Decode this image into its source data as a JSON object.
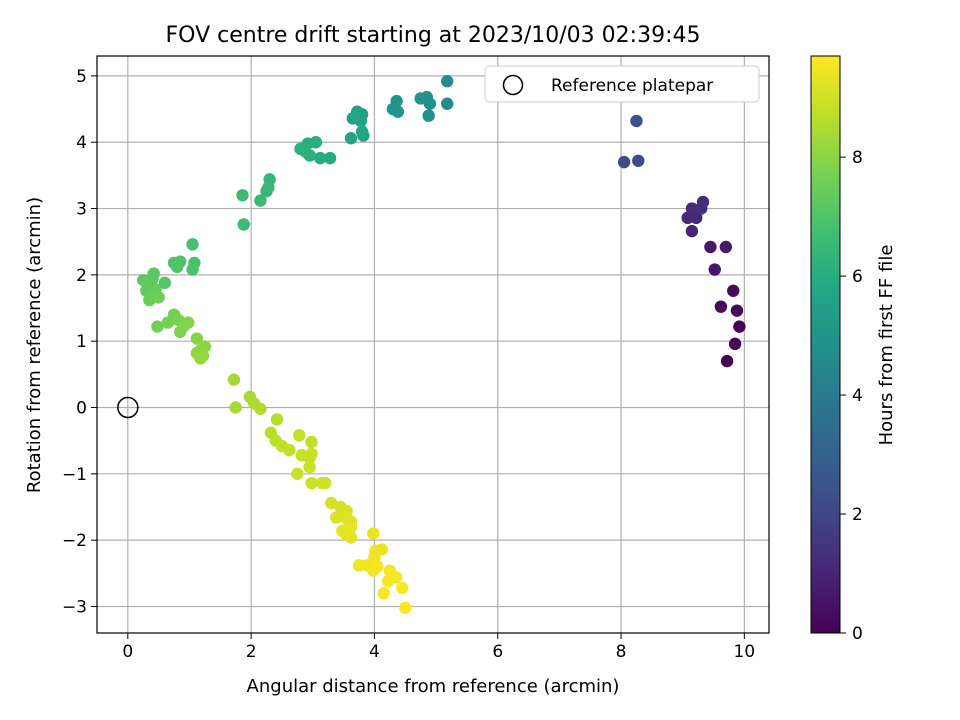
{
  "chart_data": {
    "type": "scatter",
    "title": "FOV centre drift starting at 2023/10/03 02:39:45",
    "xlabel": "Angular distance from reference (arcmin)",
    "ylabel": "Rotation from reference (arcmin)",
    "xlim": [
      -0.5,
      10.4
    ],
    "ylim": [
      -3.4,
      5.3
    ],
    "xticks": [
      0,
      2,
      4,
      6,
      8,
      10
    ],
    "yticks": [
      -3,
      -2,
      -1,
      0,
      1,
      2,
      3,
      4,
      5
    ],
    "grid": true,
    "legend": {
      "position": "upper-right",
      "entries": [
        "Reference platepar"
      ]
    },
    "reference_point": {
      "x": 0,
      "y": 0,
      "label": "Reference platepar"
    },
    "colorbar": {
      "label": "Hours from first FF file",
      "range": [
        0,
        9.7
      ],
      "ticks": [
        0,
        2,
        4,
        6,
        8
      ],
      "colormap": "viridis"
    },
    "points": [
      {
        "x": 9.72,
        "y": 0.7,
        "c": 0.05
      },
      {
        "x": 9.85,
        "y": 0.96,
        "c": 0.1
      },
      {
        "x": 9.92,
        "y": 1.22,
        "c": 0.15
      },
      {
        "x": 9.88,
        "y": 1.46,
        "c": 0.2
      },
      {
        "x": 9.62,
        "y": 1.52,
        "c": 0.25
      },
      {
        "x": 9.82,
        "y": 1.76,
        "c": 0.3
      },
      {
        "x": 9.52,
        "y": 2.08,
        "c": 0.55
      },
      {
        "x": 9.45,
        "y": 2.42,
        "c": 0.65
      },
      {
        "x": 9.7,
        "y": 2.42,
        "c": 0.7
      },
      {
        "x": 9.15,
        "y": 2.66,
        "c": 1.0
      },
      {
        "x": 9.08,
        "y": 2.86,
        "c": 1.05
      },
      {
        "x": 9.22,
        "y": 2.86,
        "c": 1.1
      },
      {
        "x": 9.15,
        "y": 3.0,
        "c": 1.15
      },
      {
        "x": 9.3,
        "y": 3.0,
        "c": 1.2
      },
      {
        "x": 9.33,
        "y": 3.1,
        "c": 1.25
      },
      {
        "x": 8.05,
        "y": 3.7,
        "c": 2.2
      },
      {
        "x": 8.28,
        "y": 3.72,
        "c": 2.25
      },
      {
        "x": 8.25,
        "y": 4.32,
        "c": 2.4
      },
      {
        "x": 5.18,
        "y": 4.92,
        "c": 4.7
      },
      {
        "x": 5.18,
        "y": 4.58,
        "c": 4.75
      },
      {
        "x": 4.88,
        "y": 4.4,
        "c": 4.8
      },
      {
        "x": 4.9,
        "y": 4.58,
        "c": 4.85
      },
      {
        "x": 4.85,
        "y": 4.68,
        "c": 4.9
      },
      {
        "x": 4.75,
        "y": 4.66,
        "c": 4.95
      },
      {
        "x": 4.36,
        "y": 4.62,
        "c": 5.0
      },
      {
        "x": 4.3,
        "y": 4.5,
        "c": 5.05
      },
      {
        "x": 4.38,
        "y": 4.46,
        "c": 5.1
      },
      {
        "x": 3.72,
        "y": 4.46,
        "c": 5.4
      },
      {
        "x": 3.8,
        "y": 4.42,
        "c": 5.45
      },
      {
        "x": 3.65,
        "y": 4.36,
        "c": 5.5
      },
      {
        "x": 3.78,
        "y": 4.32,
        "c": 5.55
      },
      {
        "x": 3.82,
        "y": 4.1,
        "c": 5.6
      },
      {
        "x": 3.62,
        "y": 4.06,
        "c": 5.65
      },
      {
        "x": 3.8,
        "y": 4.16,
        "c": 5.7
      },
      {
        "x": 3.7,
        "y": 4.4,
        "c": 5.75
      },
      {
        "x": 3.28,
        "y": 3.76,
        "c": 5.9
      },
      {
        "x": 3.12,
        "y": 3.76,
        "c": 5.95
      },
      {
        "x": 3.05,
        "y": 4.0,
        "c": 6.0
      },
      {
        "x": 2.92,
        "y": 3.98,
        "c": 6.05
      },
      {
        "x": 2.95,
        "y": 3.8,
        "c": 6.1
      },
      {
        "x": 2.88,
        "y": 3.86,
        "c": 6.15
      },
      {
        "x": 2.8,
        "y": 3.9,
        "c": 6.2
      },
      {
        "x": 2.3,
        "y": 3.44,
        "c": 6.35
      },
      {
        "x": 2.25,
        "y": 3.26,
        "c": 6.4
      },
      {
        "x": 2.28,
        "y": 3.32,
        "c": 6.45
      },
      {
        "x": 2.15,
        "y": 3.12,
        "c": 6.5
      },
      {
        "x": 1.86,
        "y": 3.2,
        "c": 6.55
      },
      {
        "x": 1.88,
        "y": 2.76,
        "c": 6.6
      },
      {
        "x": 1.05,
        "y": 2.46,
        "c": 6.8
      },
      {
        "x": 1.08,
        "y": 2.18,
        "c": 6.85
      },
      {
        "x": 1.05,
        "y": 2.08,
        "c": 6.9
      },
      {
        "x": 0.85,
        "y": 2.2,
        "c": 6.95
      },
      {
        "x": 0.75,
        "y": 2.18,
        "c": 7.0
      },
      {
        "x": 0.8,
        "y": 2.12,
        "c": 7.05
      },
      {
        "x": 0.6,
        "y": 1.88,
        "c": 7.1
      },
      {
        "x": 0.42,
        "y": 2.02,
        "c": 7.15
      },
      {
        "x": 0.4,
        "y": 1.94,
        "c": 7.2
      },
      {
        "x": 0.25,
        "y": 1.92,
        "c": 7.25
      },
      {
        "x": 0.35,
        "y": 1.84,
        "c": 7.3
      },
      {
        "x": 0.3,
        "y": 1.76,
        "c": 7.35
      },
      {
        "x": 0.45,
        "y": 1.78,
        "c": 7.4
      },
      {
        "x": 0.38,
        "y": 1.68,
        "c": 7.45
      },
      {
        "x": 0.35,
        "y": 1.62,
        "c": 7.5
      },
      {
        "x": 0.5,
        "y": 1.66,
        "c": 7.55
      },
      {
        "x": 0.48,
        "y": 1.22,
        "c": 7.6
      },
      {
        "x": 0.65,
        "y": 1.28,
        "c": 7.65
      },
      {
        "x": 0.75,
        "y": 1.4,
        "c": 7.7
      },
      {
        "x": 0.82,
        "y": 1.32,
        "c": 7.75
      },
      {
        "x": 0.9,
        "y": 1.22,
        "c": 7.8
      },
      {
        "x": 0.85,
        "y": 1.14,
        "c": 7.85
      },
      {
        "x": 0.98,
        "y": 1.28,
        "c": 7.9
      },
      {
        "x": 1.12,
        "y": 1.04,
        "c": 7.95
      },
      {
        "x": 1.25,
        "y": 0.92,
        "c": 8.0
      },
      {
        "x": 1.18,
        "y": 0.86,
        "c": 8.05
      },
      {
        "x": 1.12,
        "y": 0.82,
        "c": 8.1
      },
      {
        "x": 1.22,
        "y": 0.78,
        "c": 8.15
      },
      {
        "x": 1.18,
        "y": 0.74,
        "c": 8.2
      },
      {
        "x": 1.72,
        "y": 0.42,
        "c": 8.35
      },
      {
        "x": 1.75,
        "y": 0.0,
        "c": 8.4
      },
      {
        "x": 1.98,
        "y": 0.16,
        "c": 8.45
      },
      {
        "x": 2.05,
        "y": 0.06,
        "c": 8.5
      },
      {
        "x": 2.15,
        "y": -0.02,
        "c": 8.55
      },
      {
        "x": 2.42,
        "y": -0.18,
        "c": 8.6
      },
      {
        "x": 2.32,
        "y": -0.38,
        "c": 8.65
      },
      {
        "x": 2.4,
        "y": -0.5,
        "c": 8.7
      },
      {
        "x": 2.5,
        "y": -0.58,
        "c": 8.75
      },
      {
        "x": 2.62,
        "y": -0.64,
        "c": 8.8
      },
      {
        "x": 2.78,
        "y": -0.42,
        "c": 8.82
      },
      {
        "x": 2.98,
        "y": -0.52,
        "c": 8.84
      },
      {
        "x": 2.82,
        "y": -0.72,
        "c": 8.86
      },
      {
        "x": 2.95,
        "y": -0.76,
        "c": 8.88
      },
      {
        "x": 2.98,
        "y": -0.7,
        "c": 8.9
      },
      {
        "x": 2.95,
        "y": -0.9,
        "c": 8.92
      },
      {
        "x": 2.75,
        "y": -1.0,
        "c": 8.94
      },
      {
        "x": 2.98,
        "y": -1.14,
        "c": 8.96
      },
      {
        "x": 3.15,
        "y": -1.14,
        "c": 8.98
      },
      {
        "x": 3.2,
        "y": -1.14,
        "c": 9.0
      },
      {
        "x": 3.3,
        "y": -1.44,
        "c": 9.05
      },
      {
        "x": 3.45,
        "y": -1.5,
        "c": 9.1
      },
      {
        "x": 3.55,
        "y": -1.56,
        "c": 9.15
      },
      {
        "x": 3.38,
        "y": -1.66,
        "c": 9.2
      },
      {
        "x": 3.55,
        "y": -1.68,
        "c": 9.22
      },
      {
        "x": 3.62,
        "y": -1.72,
        "c": 9.25
      },
      {
        "x": 3.48,
        "y": -1.86,
        "c": 9.28
      },
      {
        "x": 3.55,
        "y": -1.92,
        "c": 9.3
      },
      {
        "x": 3.62,
        "y": -1.96,
        "c": 9.32
      },
      {
        "x": 3.62,
        "y": -1.8,
        "c": 9.34
      },
      {
        "x": 3.98,
        "y": -1.9,
        "c": 9.4
      },
      {
        "x": 4.02,
        "y": -2.16,
        "c": 9.42
      },
      {
        "x": 4.12,
        "y": -2.14,
        "c": 9.44
      },
      {
        "x": 4.0,
        "y": -2.26,
        "c": 9.46
      },
      {
        "x": 3.75,
        "y": -2.38,
        "c": 9.48
      },
      {
        "x": 3.88,
        "y": -2.38,
        "c": 9.5
      },
      {
        "x": 3.98,
        "y": -2.46,
        "c": 9.52
      },
      {
        "x": 4.05,
        "y": -2.4,
        "c": 9.54
      },
      {
        "x": 4.25,
        "y": -2.46,
        "c": 9.56
      },
      {
        "x": 4.35,
        "y": -2.56,
        "c": 9.58
      },
      {
        "x": 4.22,
        "y": -2.62,
        "c": 9.6
      },
      {
        "x": 4.15,
        "y": -2.8,
        "c": 9.62
      },
      {
        "x": 4.45,
        "y": -2.72,
        "c": 9.64
      },
      {
        "x": 4.5,
        "y": -3.02,
        "c": 9.66
      }
    ]
  }
}
